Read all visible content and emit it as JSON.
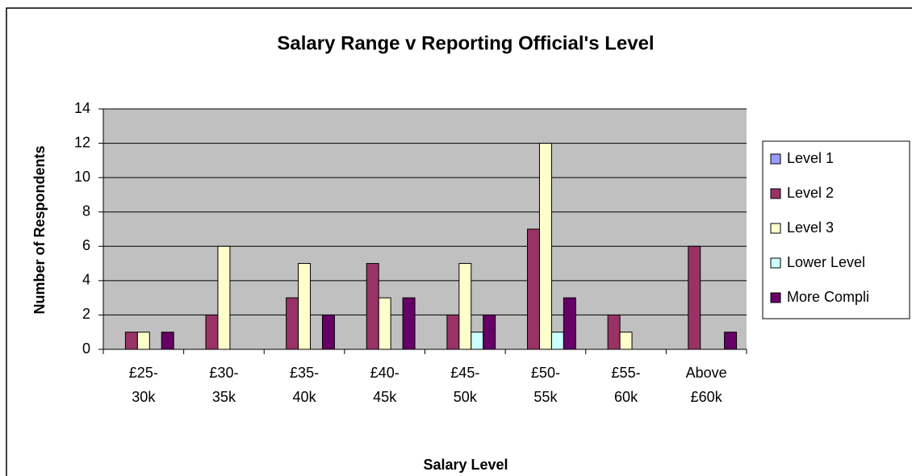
{
  "chart_data": {
    "type": "bar",
    "title": "Salary Range v Reporting Official's Level",
    "x_label": "Salary Level",
    "y_label": "Number of Respondents",
    "categories": [
      "£25- 30k",
      "£30- 35k",
      "£35- 40k",
      "£40- 45k",
      "£45- 50k",
      "£50- 55k",
      "£55- 60k",
      "Above £60k"
    ],
    "series": [
      {
        "name": "Level 1",
        "color": "#9999ff",
        "values": [
          0,
          0,
          0,
          0,
          0,
          0,
          0,
          0
        ]
      },
      {
        "name": "Level 2",
        "color": "#993366",
        "values": [
          1,
          2,
          3,
          5,
          2,
          7,
          2,
          6
        ]
      },
      {
        "name": "Level 3",
        "color": "#ffffcc",
        "values": [
          1,
          6,
          5,
          3,
          5,
          12,
          1,
          0
        ]
      },
      {
        "name": "Lower Level",
        "color": "#ccffff",
        "values": [
          0,
          0,
          0,
          0,
          1,
          1,
          0,
          0
        ]
      },
      {
        "name": "More Compli",
        "color": "#660066",
        "values": [
          1,
          0,
          2,
          3,
          2,
          3,
          0,
          1
        ]
      }
    ],
    "ylim": [
      0,
      14
    ],
    "yticks": [
      0,
      2,
      4,
      6,
      8,
      10,
      12,
      14
    ],
    "grid": true,
    "legend": "right"
  }
}
